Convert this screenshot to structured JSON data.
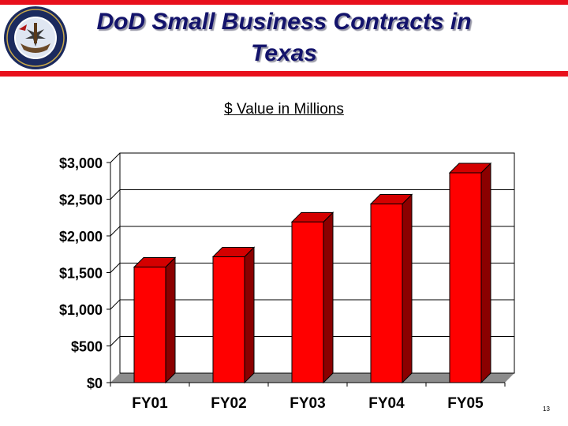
{
  "title": "DoD Small Business Contracts in Texas",
  "colors": {
    "rule": "#e8101c",
    "title": "#13136b",
    "bar": "#ff0000",
    "bar_side": "#8b0000",
    "bar_top": "#d40000"
  },
  "seal": {
    "icon": "department-of-the-navy-seal-icon"
  },
  "page_number": "13",
  "chart_data": {
    "type": "bar",
    "title": "$ Value in Millions",
    "categories": [
      "FY01",
      "FY02",
      "FY03",
      "FY04",
      "FY05"
    ],
    "values": [
      1575,
      1715,
      2190,
      2435,
      2860
    ],
    "ylim": [
      0,
      3000
    ],
    "ytick_values": [
      0,
      500,
      1000,
      1500,
      2000,
      2500,
      3000
    ],
    "ytick_labels": [
      "$0",
      "$500",
      "$1,000",
      "$1,500",
      "$2,000",
      "$2,500",
      "$3,000"
    ],
    "xlabel": "",
    "ylabel": "",
    "grid": true,
    "legend": "none"
  }
}
